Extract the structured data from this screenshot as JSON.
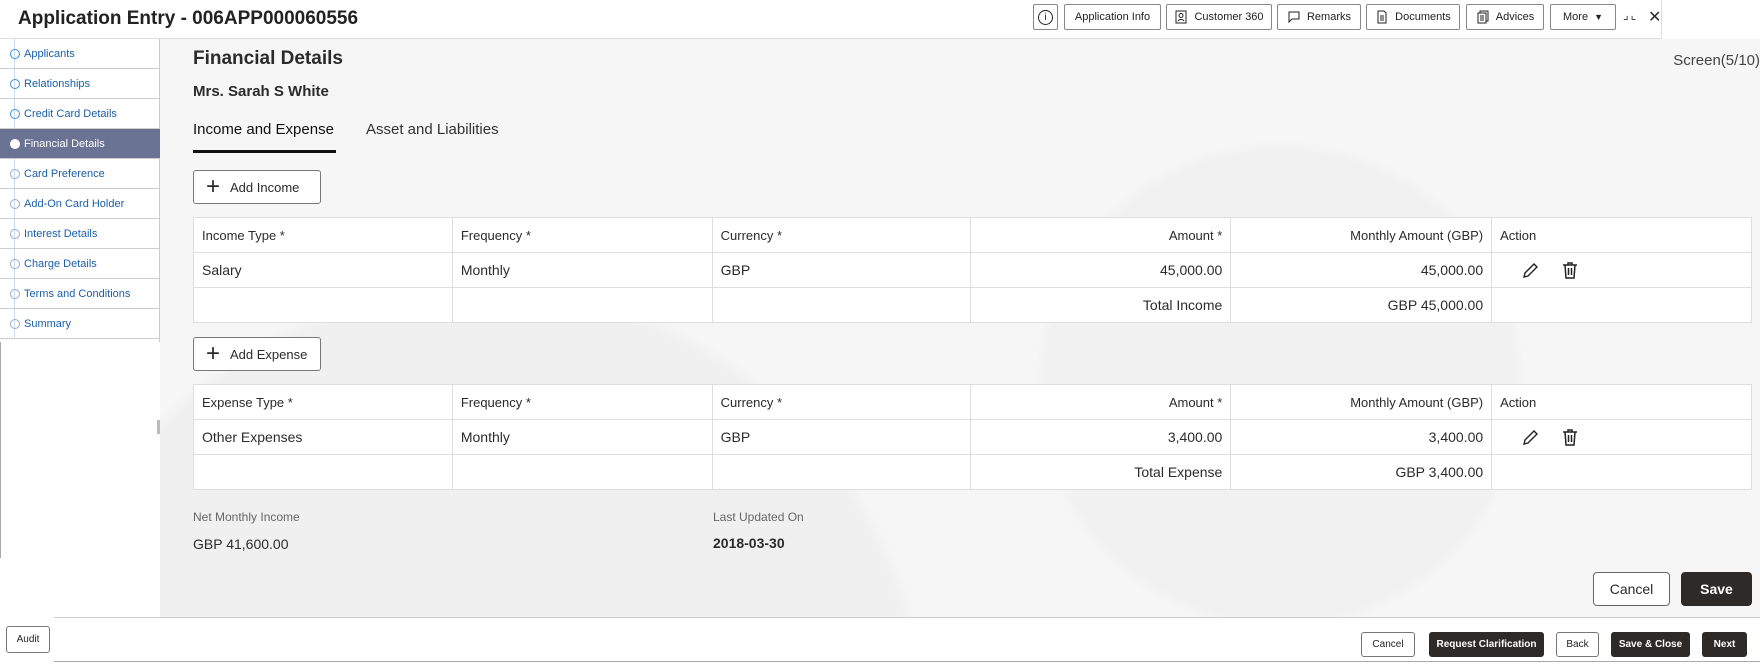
{
  "header": {
    "title": "Application Entry - 006APP000060556",
    "buttons": {
      "info": "i",
      "application_info": "Application Info",
      "customer_360": "Customer 360",
      "remarks": "Remarks",
      "documents": "Documents",
      "advices": "Advices",
      "more": "More"
    },
    "close": "✕"
  },
  "sidebar": {
    "items": [
      {
        "label": "Applicants",
        "state": "done"
      },
      {
        "label": "Relationships",
        "state": "done"
      },
      {
        "label": "Credit Card Details",
        "state": "done"
      },
      {
        "label": "Financial Details",
        "state": "active"
      },
      {
        "label": "Card Preference",
        "state": "pending"
      },
      {
        "label": "Add-On Card Holder",
        "state": "pending"
      },
      {
        "label": "Interest Details",
        "state": "pending"
      },
      {
        "label": "Charge Details",
        "state": "pending"
      },
      {
        "label": "Terms and Conditions",
        "state": "pending"
      },
      {
        "label": "Summary",
        "state": "pending"
      }
    ]
  },
  "main": {
    "title": "Financial Details",
    "screen": "Screen(5/10)",
    "customer": "Mrs. Sarah S White",
    "tabs": [
      {
        "label": "Income and Expense",
        "active": true
      },
      {
        "label": "Asset and Liabilities",
        "active": false
      }
    ],
    "income": {
      "add_label": "Add Income",
      "headers": [
        "Income Type *",
        "Frequency *",
        "Currency *",
        "Amount *",
        "Monthly Amount (GBP)",
        "Action"
      ],
      "rows": [
        [
          "Salary",
          "Monthly",
          "GBP",
          "45,000.00",
          "45,000.00"
        ]
      ],
      "total_label": "Total Income",
      "total_value": "GBP 45,000.00"
    },
    "expense": {
      "add_label": "Add Expense",
      "headers": [
        "Expense Type *",
        "Frequency *",
        "Currency *",
        "Amount *",
        "Monthly Amount (GBP)",
        "Action"
      ],
      "rows": [
        [
          "Other Expenses",
          "Monthly",
          "GBP",
          "3,400.00",
          "3,400.00"
        ]
      ],
      "total_label": "Total Expense",
      "total_value": "GBP 3,400.00"
    },
    "net_label": "Net Monthly Income",
    "net_value": "GBP 41,600.00",
    "updated_label": "Last Updated On",
    "updated_value": "2018-03-30",
    "cancel": "Cancel",
    "save": "Save"
  },
  "footer": {
    "audit": "Audit",
    "cancel": "Cancel",
    "request_clarification": "Request Clarification",
    "back": "Back",
    "save_close": "Save & Close",
    "next": "Next"
  },
  "colors": {
    "active_nav": "#6b7394",
    "dark_button": "#2e2a28",
    "link": "#1b5fa8"
  }
}
